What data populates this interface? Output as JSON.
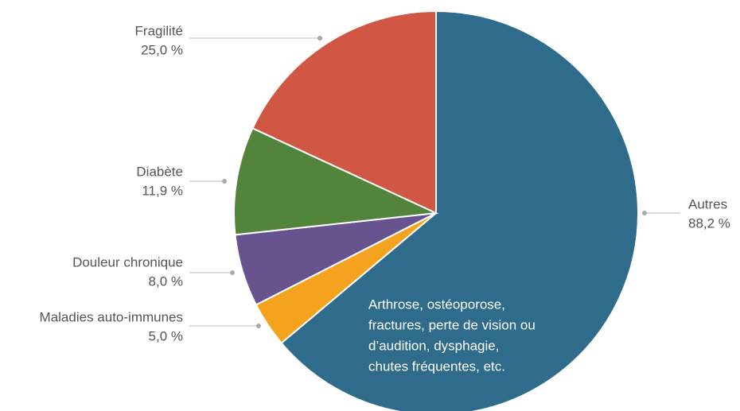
{
  "chart_data": {
    "type": "pie",
    "categories": [
      "Autres",
      "Maladies auto-immunes",
      "Douleur chronique",
      "Diabète",
      "Fragilité"
    ],
    "values": [
      88.2,
      5.0,
      8.0,
      11.9,
      25.0
    ],
    "value_labels": [
      "88,2 %",
      "5,0 %",
      "8,0 %",
      "11,9 %",
      "25,0 %"
    ],
    "colors": [
      "#2f6b8a",
      "#f5a31f",
      "#67548f",
      "#52843c",
      "#d05743"
    ],
    "annotation": [
      "Arthrose, ostéoporose,",
      "fractures, perte de vision ou",
      "d’audition, dysphagie,",
      "chutes fréquentes, etc."
    ]
  }
}
